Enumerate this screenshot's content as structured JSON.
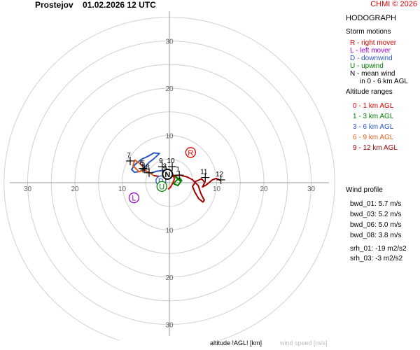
{
  "header": {
    "station": "Prostejov",
    "datetime": "01.02.2026 12 UTC",
    "copyright": "CHMI © 2026"
  },
  "legend": {
    "title": "HODOGRAPH",
    "storm_motions_title": "Storm motions",
    "storm_motions": [
      {
        "text": "R - right mover",
        "color": "#e00000"
      },
      {
        "text": "L - left mover",
        "color": "#9900cc"
      },
      {
        "text": "D - downwind",
        "color": "#2a56c6"
      },
      {
        "text": "U - upwind",
        "color": "#008000"
      },
      {
        "text": "N - mean wind",
        "color": "#000000"
      },
      {
        "text": "in 0 - 6 km AGL",
        "color": "#000000"
      }
    ],
    "altitude_title": "Altitude ranges",
    "altitude_ranges": [
      {
        "text": "0 - 1 km AGL",
        "color": "#e00000"
      },
      {
        "text": "1 - 3 km AGL",
        "color": "#008000"
      },
      {
        "text": "3 - 6 km AGL",
        "color": "#2a56c6"
      },
      {
        "text": "6 - 9 km AGL",
        "color": "#e06020"
      },
      {
        "text": "9 - 12 km AGL",
        "color": "#a00000"
      }
    ],
    "wind_profile_title": "Wind profile",
    "wind_profile": [
      "bwd_01: 5.7 m/s",
      "bwd_03: 5.2 m/s",
      "bwd_06: 5.0 m/s",
      "bwd_08: 3.8 m/s"
    ],
    "srh": [
      "srh_01: -19 m2/s2",
      "srh_03: -3 m2/s2"
    ]
  },
  "footer": {
    "altitude_label": "altitude !AGL! [km]",
    "speed_label": "wind speed [m/s]"
  },
  "chart_data": {
    "type": "line",
    "title": "HODOGRAPH",
    "rings": [
      5,
      10,
      15,
      20,
      25,
      30,
      35
    ],
    "tick_labels_y_up": [
      "30",
      "20",
      "10"
    ],
    "tick_labels_y_down": [
      "10",
      "20",
      "30"
    ],
    "tick_labels_x_left": [
      "30",
      "20",
      "10"
    ],
    "tick_labels_x_right": [
      "10",
      "20",
      "30"
    ],
    "grid": true,
    "axis_range": [
      -35,
      35
    ],
    "series": [
      {
        "name": "0 - 1 km AGL",
        "color": "#e00000",
        "u": [
          -0.3,
          0.2,
          0.6,
          0.9,
          1.1,
          0.8,
          0.5
        ],
        "v": [
          -1.4,
          -1.0,
          -0.3,
          0.4,
          0.9,
          1.3,
          1.6
        ]
      },
      {
        "name": "1 - 3 km AGL",
        "color": "#008000",
        "u": [
          0.5,
          1.2,
          2.0,
          2.6,
          2.2,
          1.4,
          0.9,
          1.8,
          2.4,
          1.5,
          0.6,
          -0.3
        ],
        "v": [
          1.6,
          1.3,
          0.6,
          0.4,
          1.0,
          0.4,
          -0.2,
          -0.6,
          0.2,
          1.2,
          1.8,
          2.3
        ]
      },
      {
        "name": "3 - 6 km AGL",
        "color": "#2a56c6",
        "u": [
          -0.3,
          -1.3,
          -2.8,
          -4.0,
          -5.0,
          -5.2,
          -4.3,
          -3.4,
          -2.5,
          -2.1,
          -3.3,
          -4.5,
          -6.0,
          -7.3,
          -8.0,
          -7.4,
          -6.2,
          -5.3
        ],
        "v": [
          2.3,
          2.6,
          2.4,
          2.0,
          2.4,
          3.3,
          4.3,
          5.0,
          5.8,
          6.2,
          6.3,
          5.6,
          4.9,
          3.8,
          2.8,
          2.2,
          2.4,
          3.0
        ]
      },
      {
        "name": "6 - 9 km AGL",
        "color": "#e06020",
        "u": [
          -5.3,
          -6.2,
          -7.3,
          -7.7,
          -6.4,
          -5.3,
          -4.2,
          -3.3
        ],
        "v": [
          3.0,
          4.0,
          4.8,
          3.6,
          2.3,
          2.7,
          2.1,
          1.5
        ]
      },
      {
        "name": "9 - 12 km AGL",
        "color": "#a00000",
        "u": [
          -3.3,
          -1.9,
          -0.5,
          0.9,
          2.3,
          3.8,
          4.9,
          6.1,
          6.7,
          7.4,
          7.1,
          6.2,
          5.4,
          4.9,
          5.6,
          6.8,
          7.5,
          7.0,
          7.9,
          9.1,
          9.9,
          10.6,
          10.9
        ],
        "v": [
          1.5,
          1.3,
          1.0,
          1.5,
          1.6,
          1.2,
          0.6,
          -0.6,
          -2.4,
          -3.7,
          -4.1,
          -3.4,
          -2.0,
          -0.8,
          0.3,
          0.8,
          0.1,
          -0.9,
          -0.4,
          0.6,
          0.9,
          0.6,
          0.4
        ]
      }
    ],
    "altitude_markers": [
      {
        "label": "1",
        "u": 2.1,
        "v": 1.6
      },
      {
        "label": "3",
        "u": -0.7,
        "v": 2.3
      },
      {
        "label": "5",
        "u": -5.3,
        "v": 2.9
      },
      {
        "label": "6",
        "u": -5.6,
        "v": 3.0
      },
      {
        "label": "7",
        "u": -8.3,
        "v": 4.6
      },
      {
        "label": "8",
        "u": -4.3,
        "v": 2.1
      },
      {
        "label": "9",
        "u": -1.5,
        "v": 3.4
      },
      {
        "label": "10",
        "u": 0.6,
        "v": 3.4
      },
      {
        "label": "11",
        "u": 7.6,
        "v": 1.1
      },
      {
        "label": "12",
        "u": 10.9,
        "v": 0.6
      }
    ],
    "storm_motions": [
      {
        "label": "R",
        "u": 4.5,
        "v": 6.4,
        "color": "#e00000"
      },
      {
        "label": "L",
        "u": -7.5,
        "v": -3.2,
        "color": "#9900cc"
      },
      {
        "label": "D",
        "u": -1.8,
        "v": 0.4,
        "color": "#2a56c6"
      },
      {
        "label": "U",
        "u": -1.6,
        "v": -0.8,
        "color": "#008000"
      },
      {
        "label": "N",
        "u": -0.4,
        "v": 1.8,
        "color": "#000000"
      }
    ]
  }
}
